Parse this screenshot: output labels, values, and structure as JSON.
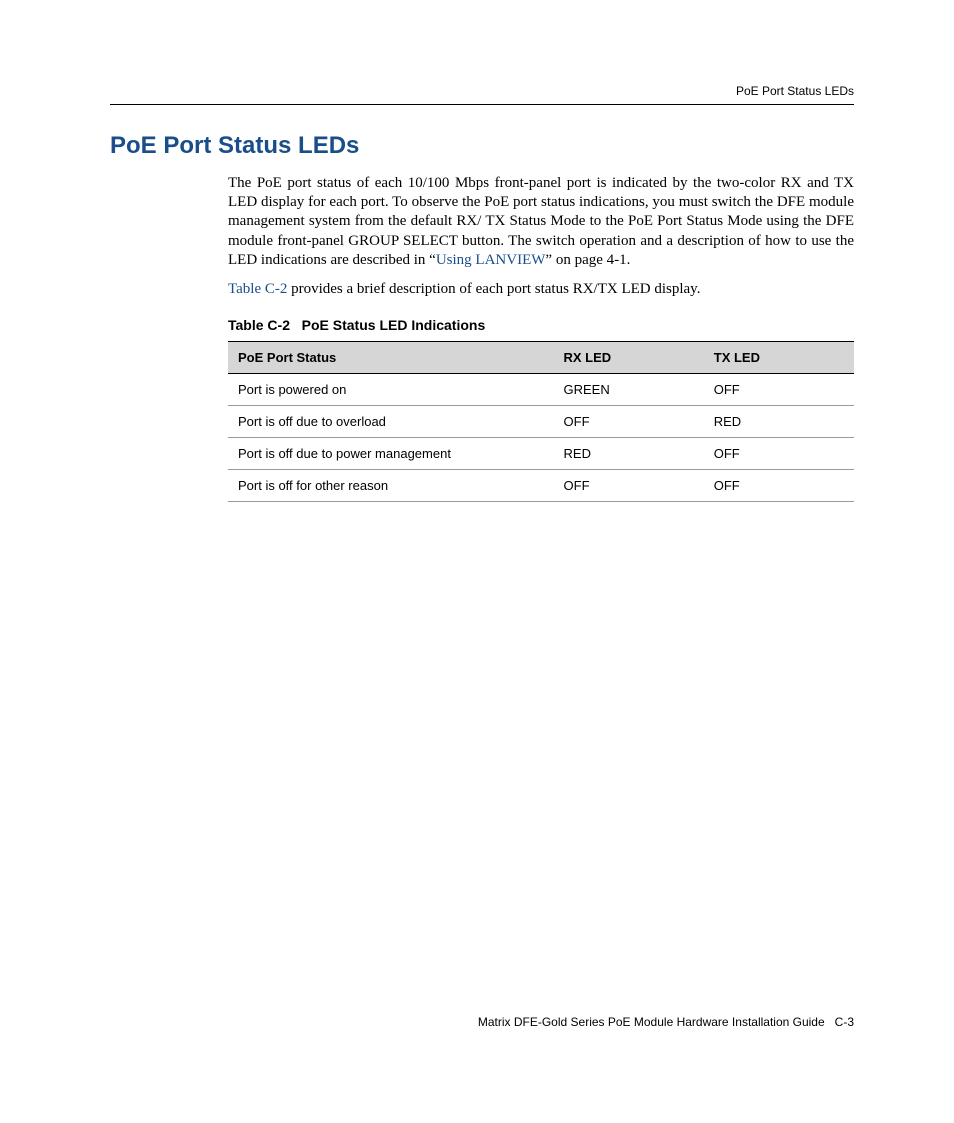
{
  "colors": {
    "heading": "#1a4e8a",
    "link": "#1a4e8a",
    "text": "#000000",
    "table_header_bg": "#d6d6d6",
    "table_row_border": "#9a9a9a",
    "background": "#ffffff"
  },
  "fonts": {
    "body_family": "Palatino, Palatino Linotype, Book Antiqua, Georgia, serif",
    "sans_family": "Arial, Helvetica, sans-serif",
    "title_size_pt": 18,
    "body_size_pt": 11,
    "table_size_pt": 10,
    "footer_size_pt": 9
  },
  "header": {
    "running_head": "PoE Port Status LEDs"
  },
  "title": "PoE Port Status LEDs",
  "body": {
    "para1_a": "The PoE port status of each 10/100 Mbps front-panel port is indicated by the two-color RX and TX LED display for each port. To observe the PoE port status indications, you must switch the DFE module management system from the default RX/ TX Status Mode to the PoE Port Status Mode using the DFE module front-panel GROUP SELECT button. The switch operation and a description of how to use the LED indications are described in “",
    "para1_link": "Using LANVIEW",
    "para1_b": "” on page 4-1.",
    "para2_link": "Table C-2",
    "para2_rest": " provides a brief description of each port status RX/TX LED display."
  },
  "table": {
    "caption_no": "Table C-2",
    "caption_title": "PoE Status LED Indications",
    "columns": [
      "PoE Port Status",
      "RX LED",
      "TX LED"
    ],
    "col_widths_pct": [
      52,
      24,
      24
    ],
    "rows": [
      [
        "Port is powered on",
        "GREEN",
        "OFF"
      ],
      [
        "Port is off due to overload",
        "OFF",
        "RED"
      ],
      [
        "Port is off due to power management",
        "RED",
        "OFF"
      ],
      [
        "Port is off for other reason",
        "OFF",
        "OFF"
      ]
    ]
  },
  "footer": {
    "guide": "Matrix DFE-Gold Series PoE Module Hardware Installation Guide",
    "page": "C-3"
  }
}
